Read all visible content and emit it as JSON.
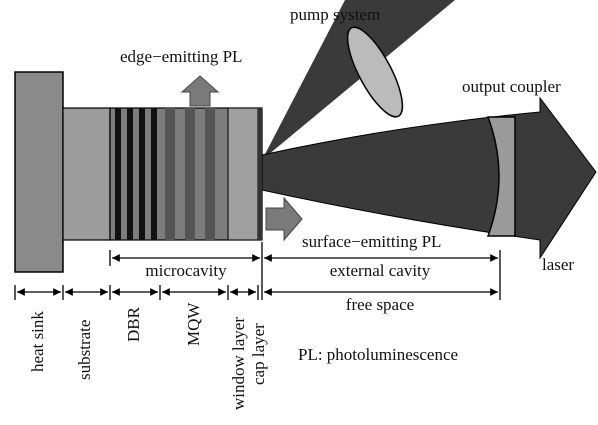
{
  "labels": {
    "pump": "pump system",
    "edge_pl": "edge−emitting PL",
    "output_coupler": "output coupler",
    "surface_pl": "surface−emitting PL",
    "laser": "laser",
    "microcavity": "microcavity",
    "external_cavity": "external cavity",
    "free_space": "free space",
    "legend": "PL: photoluminescence"
  },
  "layers": [
    "heat sink",
    "substrate",
    "DBR",
    "MQW",
    "window layer",
    "cap layer"
  ]
}
